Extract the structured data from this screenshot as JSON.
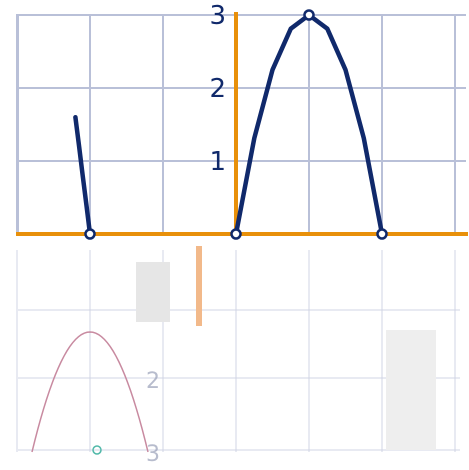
{
  "chart_data": {
    "type": "line",
    "title": "",
    "xlabel": "",
    "ylabel": "",
    "xlim": [
      -3,
      3.2
    ],
    "ylim": [
      -3,
      3.1
    ],
    "grid": true,
    "y_tick_labels": [
      {
        "value": 1,
        "label": "1"
      },
      {
        "value": 2,
        "label": "2"
      },
      {
        "value": 3,
        "label": "3"
      }
    ],
    "lower_tick_labels": [
      {
        "value": -2,
        "label": "2"
      },
      {
        "value": -3,
        "label": "3"
      }
    ],
    "series": [
      {
        "x": [
          -2.2,
          -2.15,
          -2.1,
          -2.05,
          -2.0
        ],
        "y": [
          1.6,
          1.2,
          0.8,
          0.4,
          0.0
        ],
        "points": [
          {
            "x": -2.0,
            "y": 0
          }
        ]
      },
      {
        "x": [
          0,
          0.25,
          0.5,
          0.75,
          1.0,
          1.25,
          1.5,
          1.75,
          2.0
        ],
        "y": [
          0,
          1.3125,
          2.25,
          2.8125,
          3.0,
          2.8125,
          2.25,
          1.3125,
          0
        ],
        "points": [
          {
            "x": 0,
            "y": 0
          },
          {
            "x": 1,
            "y": 3
          },
          {
            "x": 2,
            "y": 0
          }
        ]
      }
    ],
    "colors": {
      "curve": "#10296b",
      "axis": "#e8900a",
      "grid": "#b9c0d8",
      "point_fill": "#ffffff",
      "label": "#10296b",
      "ghost_curve": "#c88aa0",
      "ghost_point": "#4fb8a8"
    }
  }
}
